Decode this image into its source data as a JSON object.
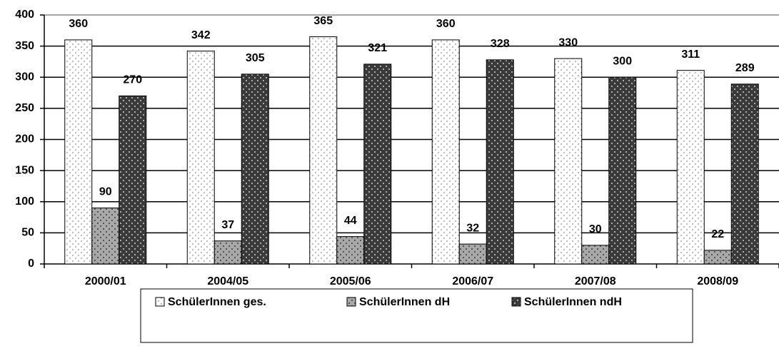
{
  "chart_data": {
    "type": "bar",
    "categories": [
      "2000/01",
      "2004/05",
      "2005/06",
      "2006/07",
      "2007/08",
      "2008/09"
    ],
    "series": [
      {
        "name": "SchülerInnen ges.",
        "color": "#ffffff",
        "values": [
          360,
          342,
          365,
          360,
          330,
          311
        ]
      },
      {
        "name": "SchülerInnen dH",
        "color": "#a8a8a8",
        "values": [
          90,
          37,
          44,
          32,
          30,
          22
        ]
      },
      {
        "name": "SchülerInnen ndH",
        "color": "#3a3a3a",
        "values": [
          270,
          305,
          321,
          328,
          300,
          289
        ]
      }
    ],
    "ylim": [
      0,
      400
    ],
    "yticks": [
      0,
      50,
      100,
      150,
      200,
      250,
      300,
      350,
      400
    ],
    "grid": true,
    "legend": "bottom"
  }
}
